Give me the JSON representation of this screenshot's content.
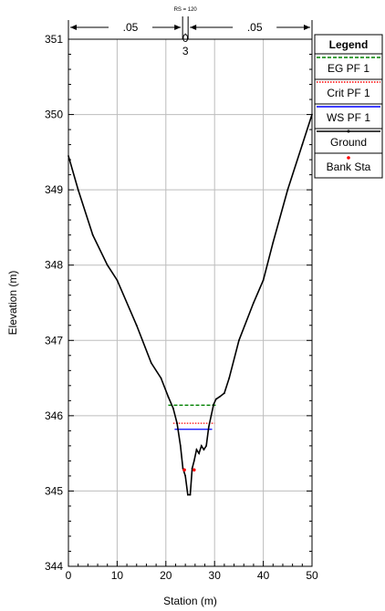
{
  "chart_data": {
    "type": "line",
    "title": "",
    "xlabel": "Station (m)",
    "ylabel": "Elevation (m)",
    "xlim": [
      0,
      50
    ],
    "ylim": [
      344,
      351
    ],
    "xticks": [
      "0",
      "10",
      "20",
      "30",
      "40",
      "50"
    ],
    "yticks": [
      "344",
      "345",
      "346",
      "347",
      "348",
      "349",
      "350",
      "351"
    ],
    "grid": true,
    "legend_title": "Legend",
    "legend_position": "right",
    "manning": {
      "left_label": ".05",
      "right_label": ".05",
      "station_label": "RS = 120",
      "center_label_top": "0",
      "center_label_dot": ".",
      "center_label_bottom": "3"
    },
    "series": [
      {
        "name": "EG PF 1",
        "kind": "line",
        "style": "dashed",
        "color": "#008000",
        "x": [
          20.5,
          30.5
        ],
        "y": [
          346.14,
          346.14
        ]
      },
      {
        "name": "Crit PF 1",
        "kind": "line",
        "style": "dotted",
        "color": "#ff0000",
        "x": [
          21.5,
          30.0
        ],
        "y": [
          345.9,
          345.9
        ]
      },
      {
        "name": "WS PF 1",
        "kind": "line",
        "style": "solid",
        "color": "#0000ff",
        "x": [
          21.8,
          29.5
        ],
        "y": [
          345.82,
          345.82
        ]
      },
      {
        "name": "Ground",
        "kind": "line",
        "style": "solid",
        "color": "#000000",
        "x": [
          0,
          2,
          5,
          8,
          10,
          14,
          17,
          19,
          20.5,
          21.5,
          22.3,
          23.0,
          23.5,
          24.0,
          24.5,
          25.0,
          25.4,
          25.8,
          26.3,
          26.8,
          27.3,
          27.8,
          28.3,
          28.8,
          29.3,
          29.8,
          30.3,
          31.0,
          32.0,
          33.0,
          35.0,
          38.0,
          40.0,
          42.0,
          45.0,
          48.0,
          50.0
        ],
        "y": [
          349.45,
          349.0,
          348.4,
          348.0,
          347.8,
          347.2,
          346.7,
          346.5,
          346.25,
          346.1,
          345.9,
          345.6,
          345.3,
          345.2,
          344.95,
          344.95,
          345.3,
          345.4,
          345.55,
          345.5,
          345.6,
          345.55,
          345.6,
          345.85,
          346.0,
          346.15,
          346.22,
          346.25,
          346.3,
          346.5,
          347.0,
          347.5,
          347.8,
          348.3,
          349.0,
          349.6,
          350.0
        ]
      },
      {
        "name": "Bank Sta",
        "kind": "points",
        "color": "#ff0000",
        "x": [
          23.8,
          25.8
        ],
        "y": [
          345.28,
          345.28
        ]
      }
    ]
  }
}
